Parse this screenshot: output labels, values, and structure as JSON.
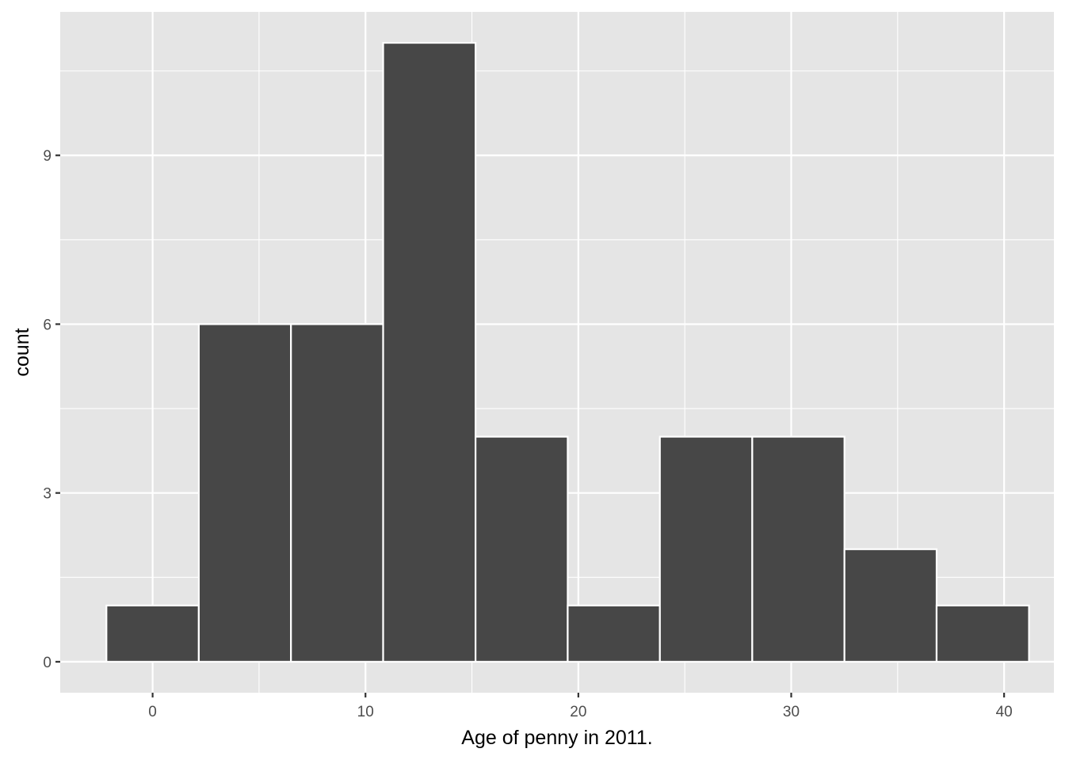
{
  "chart_data": {
    "type": "bar",
    "subtype": "histogram",
    "bins": [
      {
        "x_start": -2.17,
        "x_end": 2.17,
        "count": 1
      },
      {
        "x_start": 2.17,
        "x_end": 6.5,
        "count": 6
      },
      {
        "x_start": 6.5,
        "x_end": 10.83,
        "count": 6
      },
      {
        "x_start": 10.83,
        "x_end": 15.17,
        "count": 11
      },
      {
        "x_start": 15.17,
        "x_end": 19.5,
        "count": 4
      },
      {
        "x_start": 19.5,
        "x_end": 23.83,
        "count": 1
      },
      {
        "x_start": 23.83,
        "x_end": 28.17,
        "count": 4
      },
      {
        "x_start": 28.17,
        "x_end": 32.5,
        "count": 4
      },
      {
        "x_start": 32.5,
        "x_end": 36.83,
        "count": 2
      },
      {
        "x_start": 36.83,
        "x_end": 41.17,
        "count": 1
      }
    ],
    "title": "",
    "xlabel": "Age of penny in 2011.",
    "ylabel": "count",
    "xlim": [
      -4.34,
      42.34
    ],
    "ylim": [
      -0.55,
      11.55
    ],
    "x_ticks": [
      0,
      10,
      20,
      30,
      40
    ],
    "x_tick_labels": [
      "0",
      "10",
      "20",
      "30",
      "40"
    ],
    "y_ticks": [
      0,
      3,
      6,
      9
    ],
    "y_tick_labels": [
      "0",
      "3",
      "6",
      "9"
    ],
    "x_minor_ticks": [
      5,
      15,
      25,
      35
    ],
    "y_minor_ticks": [
      1.5,
      4.5,
      7.5,
      10.5
    ],
    "grid": true,
    "legend": "none",
    "colors": {
      "panel_background": "#e5e5e5",
      "grid": "#ffffff",
      "bar_fill": "#474747",
      "bar_outline": "#ffffff"
    }
  }
}
